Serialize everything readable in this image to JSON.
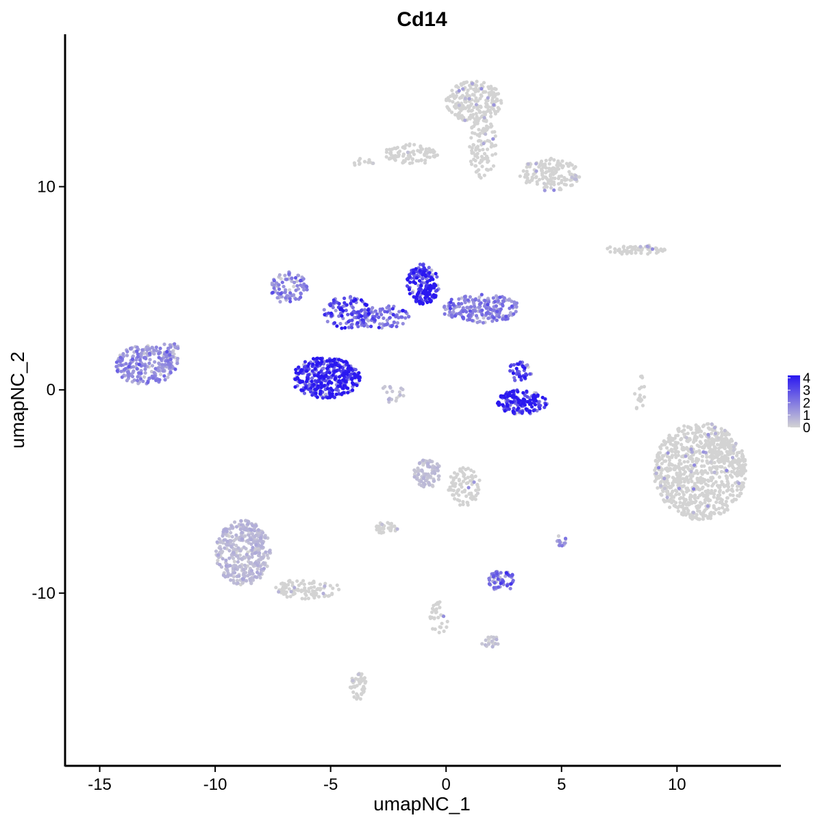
{
  "chart_data": {
    "type": "scatter",
    "title": "Cd14",
    "xlabel": "umapNC_1",
    "ylabel": "umapNC_2",
    "xlim": [
      -16.5,
      14.5
    ],
    "ylim": [
      -18.5,
      17.5
    ],
    "x_ticks": [
      -15,
      -10,
      -5,
      0,
      5,
      10
    ],
    "x_tick_labels": [
      "-15",
      "-10",
      "-5",
      "0",
      "5",
      "10"
    ],
    "y_ticks": [
      -10,
      0,
      10
    ],
    "y_tick_labels": [
      "-10",
      "0",
      "10"
    ],
    "grid": false,
    "legend": {
      "placement": "right",
      "type": "colorbar",
      "min": 0,
      "max": 4.2,
      "ticks": [
        0,
        1,
        2,
        3,
        4
      ],
      "tick_labels": [
        "0",
        "1",
        "2",
        "3",
        "4"
      ],
      "low_color": "#d3d3d3",
      "high_color": "#2a18f0"
    },
    "clusters": [
      {
        "x": -13.0,
        "y": 1.2,
        "rx": 1.3,
        "ry": 1.0,
        "n": 220,
        "expr": 1.4
      },
      {
        "x": -11.9,
        "y": 1.8,
        "rx": 0.5,
        "ry": 0.6,
        "n": 40,
        "expr": 1.0
      },
      {
        "x": -5.2,
        "y": 0.6,
        "rx": 1.5,
        "ry": 1.0,
        "n": 380,
        "expr": 3.5
      },
      {
        "x": -6.8,
        "y": 5.0,
        "rx": 0.8,
        "ry": 0.8,
        "n": 90,
        "expr": 1.6
      },
      {
        "x": -4.3,
        "y": 3.8,
        "rx": 1.0,
        "ry": 0.8,
        "n": 110,
        "expr": 2.6
      },
      {
        "x": -2.8,
        "y": 3.6,
        "rx": 1.2,
        "ry": 0.6,
        "n": 90,
        "expr": 2.0
      },
      {
        "x": -1.0,
        "y": 5.2,
        "rx": 0.7,
        "ry": 1.0,
        "n": 180,
        "expr": 3.4
      },
      {
        "x": 1.5,
        "y": 4.0,
        "rx": 1.7,
        "ry": 0.7,
        "n": 200,
        "expr": 1.6
      },
      {
        "x": 3.3,
        "y": -0.6,
        "rx": 1.1,
        "ry": 0.6,
        "n": 160,
        "expr": 3.6
      },
      {
        "x": 3.2,
        "y": 0.9,
        "rx": 0.5,
        "ry": 0.5,
        "n": 40,
        "expr": 2.6
      },
      {
        "x": 1.2,
        "y": 14.2,
        "rx": 1.2,
        "ry": 1.0,
        "n": 220,
        "expr": 0.1
      },
      {
        "x": 1.6,
        "y": 12.0,
        "rx": 0.6,
        "ry": 1.6,
        "n": 110,
        "expr": 0.1
      },
      {
        "x": 4.5,
        "y": 10.6,
        "rx": 1.3,
        "ry": 0.8,
        "n": 150,
        "expr": 0.1
      },
      {
        "x": -1.5,
        "y": 11.6,
        "rx": 1.2,
        "ry": 0.5,
        "n": 90,
        "expr": 0.1
      },
      {
        "x": 8.3,
        "y": 6.9,
        "rx": 1.4,
        "ry": 0.25,
        "n": 70,
        "expr": 0.05
      },
      {
        "x": 11.0,
        "y": -4.0,
        "rx": 2.0,
        "ry": 2.4,
        "n": 900,
        "expr": 0.1
      },
      {
        "x": -8.8,
        "y": -8.0,
        "rx": 1.2,
        "ry": 1.6,
        "n": 380,
        "expr": 0.5
      },
      {
        "x": -6.0,
        "y": -9.8,
        "rx": 1.4,
        "ry": 0.5,
        "n": 90,
        "expr": 0.2
      },
      {
        "x": -3.8,
        "y": -14.6,
        "rx": 0.35,
        "ry": 0.7,
        "n": 50,
        "expr": 0.1
      },
      {
        "x": -0.8,
        "y": -4.1,
        "rx": 0.6,
        "ry": 0.7,
        "n": 90,
        "expr": 0.4
      },
      {
        "x": 0.8,
        "y": -4.8,
        "rx": 0.7,
        "ry": 1.0,
        "n": 90,
        "expr": 0.25
      },
      {
        "x": -2.6,
        "y": -6.8,
        "rx": 0.5,
        "ry": 0.3,
        "n": 35,
        "expr": 0.25
      },
      {
        "x": 2.4,
        "y": -9.4,
        "rx": 0.6,
        "ry": 0.5,
        "n": 60,
        "expr": 1.8
      },
      {
        "x": -0.3,
        "y": -11.2,
        "rx": 0.4,
        "ry": 0.8,
        "n": 30,
        "expr": 0.2
      },
      {
        "x": 2.0,
        "y": -12.4,
        "rx": 0.5,
        "ry": 0.25,
        "n": 20,
        "expr": 0.3
      },
      {
        "x": 5.0,
        "y": -7.4,
        "rx": 0.2,
        "ry": 0.3,
        "n": 14,
        "expr": 1.2
      },
      {
        "x": 8.4,
        "y": -0.2,
        "rx": 0.25,
        "ry": 1.0,
        "n": 18,
        "expr": 0.2
      },
      {
        "x": -2.4,
        "y": -0.2,
        "rx": 0.6,
        "ry": 0.5,
        "n": 18,
        "expr": 0.4
      },
      {
        "x": -3.6,
        "y": 11.2,
        "rx": 0.5,
        "ry": 0.2,
        "n": 12,
        "expr": 0.1
      }
    ]
  }
}
